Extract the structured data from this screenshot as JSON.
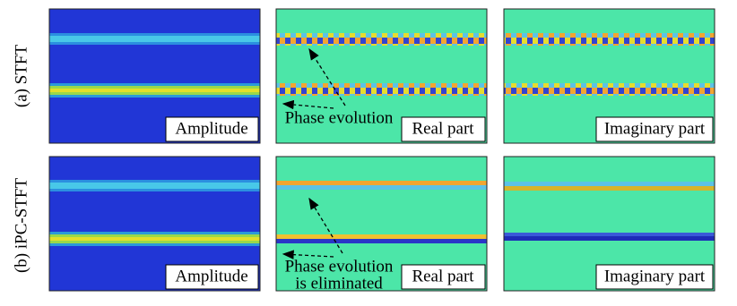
{
  "rows": [
    {
      "label": "(a) STFT",
      "panels": [
        "Amplitude",
        "Real part",
        "Imaginary part"
      ],
      "annotation": [
        "Phase evolution"
      ]
    },
    {
      "label": "(b) iPC-STFT",
      "panels": [
        "Amplitude",
        "Real part",
        "Imaginary part"
      ],
      "annotation": [
        "Phase evolution",
        "is eliminated"
      ]
    }
  ]
}
